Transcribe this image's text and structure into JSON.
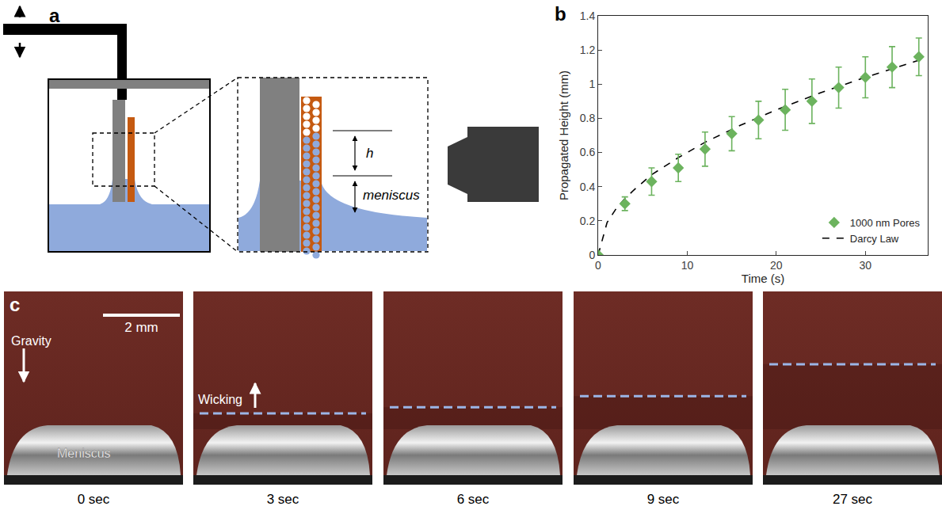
{
  "chart_data": {
    "type": "scatter",
    "x_label": "Time (s)",
    "y_label": "Propagated Height (mm)",
    "xlim": [
      0,
      37
    ],
    "ylim": [
      0,
      1.4
    ],
    "xticks": [
      0,
      10,
      20,
      30
    ],
    "yticks": [
      0,
      0.2,
      0.4,
      0.6,
      0.8,
      1,
      1.2,
      1.4
    ],
    "grid": false,
    "legend": "lower right",
    "series": [
      {
        "name": "1000 nm Pores",
        "type": "scatter",
        "color": "#6cb35e",
        "marker": "diamond",
        "x": [
          0,
          3,
          6,
          9,
          12,
          15,
          18,
          21,
          24,
          27,
          30,
          33,
          36
        ],
        "values": [
          0,
          0.3,
          0.43,
          0.51,
          0.62,
          0.71,
          0.79,
          0.85,
          0.9,
          0.98,
          1.04,
          1.1,
          1.16
        ],
        "error": [
          0,
          0.04,
          0.08,
          0.08,
          0.1,
          0.1,
          0.11,
          0.12,
          0.13,
          0.12,
          0.12,
          0.12,
          0.11
        ]
      },
      {
        "name": "Darcy Law",
        "type": "line",
        "color": "#000000",
        "line_style": "dashed",
        "x": [
          0,
          1,
          2,
          3,
          4,
          6,
          9,
          12,
          16,
          20,
          25,
          30,
          36
        ],
        "values": [
          0,
          0.19,
          0.27,
          0.33,
          0.38,
          0.47,
          0.57,
          0.66,
          0.76,
          0.85,
          0.95,
          1.04,
          1.14
        ]
      }
    ]
  },
  "figure": {
    "panel_labels": [
      "a",
      "b",
      "c"
    ],
    "diagram": {
      "h": "h",
      "meniscus": "meniscus"
    },
    "photos": {
      "scale_bar": {
        "label": "2 mm",
        "mm": 2
      },
      "gravity": "Gravity",
      "wicking": "Wicking",
      "meniscus": "Meniscus",
      "frames": [
        {
          "label": "0 sec",
          "front_mm": null
        },
        {
          "label": "3 sec",
          "front_mm": 0.31
        },
        {
          "label": "6 sec",
          "front_mm": 0.47
        },
        {
          "label": "9 sec",
          "front_mm": 0.76
        },
        {
          "label": "27 sec",
          "front_mm": 1.59
        }
      ]
    }
  }
}
